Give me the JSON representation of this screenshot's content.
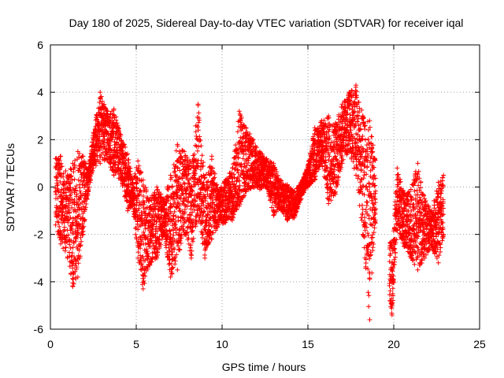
{
  "chart_data": {
    "type": "scatter",
    "title": "Day 180 of 2025, Sidereal Day-to-day VTEC variation (SDTVAR) for receiver iqal",
    "xlabel": "GPS time / hours",
    "ylabel": "SDTVAR / TECUs",
    "xlim": [
      0,
      25
    ],
    "ylim": [
      -6,
      6
    ],
    "xticks": [
      0,
      5,
      10,
      15,
      20,
      25
    ],
    "yticks": [
      -6,
      -4,
      -2,
      0,
      2,
      4,
      6
    ],
    "xtick_labels": [
      "0",
      "5",
      "10",
      "15",
      "20",
      "25"
    ],
    "ytick_labels": [
      "-6",
      "-4",
      "-2",
      "0",
      "2",
      "4",
      "6"
    ],
    "grid": true,
    "marker": "+",
    "marker_color": "#ff0000",
    "series": [
      {
        "name": "SDTVAR",
        "envelope_points": [
          {
            "x": 0.3,
            "lo": -1.6,
            "hi": 1.2
          },
          {
            "x": 0.6,
            "lo": -2.4,
            "hi": 1.3
          },
          {
            "x": 1.0,
            "lo": -3.0,
            "hi": 0.5
          },
          {
            "x": 1.3,
            "lo": -4.2,
            "hi": 1.0
          },
          {
            "x": 1.6,
            "lo": -3.8,
            "hi": 1.5
          },
          {
            "x": 1.9,
            "lo": -2.0,
            "hi": 1.3
          },
          {
            "x": 2.2,
            "lo": -0.2,
            "hi": 0.8
          },
          {
            "x": 2.5,
            "lo": 0.8,
            "hi": 2.3
          },
          {
            "x": 2.9,
            "lo": 1.0,
            "hi": 4.0
          },
          {
            "x": 3.3,
            "lo": 1.2,
            "hi": 3.2
          },
          {
            "x": 3.7,
            "lo": 0.5,
            "hi": 3.3
          },
          {
            "x": 4.1,
            "lo": 0.3,
            "hi": 2.2
          },
          {
            "x": 4.5,
            "lo": -1.0,
            "hi": 1.4
          },
          {
            "x": 4.8,
            "lo": -0.8,
            "hi": 0.2
          },
          {
            "x": 5.1,
            "lo": -3.0,
            "hi": 1.1
          },
          {
            "x": 5.4,
            "lo": -4.3,
            "hi": 0.3
          },
          {
            "x": 5.8,
            "lo": -3.3,
            "hi": -0.5
          },
          {
            "x": 6.2,
            "lo": -3.0,
            "hi": 0.0
          },
          {
            "x": 6.6,
            "lo": -2.0,
            "hi": -0.5
          },
          {
            "x": 7.0,
            "lo": -3.8,
            "hi": 0.5
          },
          {
            "x": 7.4,
            "lo": -3.5,
            "hi": 1.8
          },
          {
            "x": 7.8,
            "lo": -2.0,
            "hi": 1.5
          },
          {
            "x": 8.2,
            "lo": -3.0,
            "hi": 1.0
          },
          {
            "x": 8.6,
            "lo": -1.2,
            "hi": 3.5
          },
          {
            "x": 9.0,
            "lo": -3.0,
            "hi": 0.4
          },
          {
            "x": 9.4,
            "lo": -2.2,
            "hi": 1.3
          },
          {
            "x": 9.8,
            "lo": -1.6,
            "hi": -0.2
          },
          {
            "x": 10.2,
            "lo": -1.5,
            "hi": 0.3
          },
          {
            "x": 10.6,
            "lo": -1.4,
            "hi": 0.8
          },
          {
            "x": 11.0,
            "lo": -0.8,
            "hi": 3.2
          },
          {
            "x": 11.4,
            "lo": -0.2,
            "hi": 2.5
          },
          {
            "x": 11.8,
            "lo": 0.0,
            "hi": 2.0
          },
          {
            "x": 12.2,
            "lo": -0.1,
            "hi": 1.5
          },
          {
            "x": 12.6,
            "lo": 0.0,
            "hi": 1.2
          },
          {
            "x": 13.0,
            "lo": -1.2,
            "hi": 1.0
          },
          {
            "x": 13.4,
            "lo": -0.9,
            "hi": 0.3
          },
          {
            "x": 13.8,
            "lo": -1.4,
            "hi": 0.1
          },
          {
            "x": 14.2,
            "lo": -1.3,
            "hi": -0.2
          },
          {
            "x": 14.6,
            "lo": -0.5,
            "hi": 0.2
          },
          {
            "x": 15.0,
            "lo": 0.0,
            "hi": 0.9
          },
          {
            "x": 15.4,
            "lo": 0.3,
            "hi": 2.5
          },
          {
            "x": 15.8,
            "lo": 1.0,
            "hi": 2.8
          },
          {
            "x": 16.2,
            "lo": -0.7,
            "hi": 3.0
          },
          {
            "x": 16.6,
            "lo": -0.3,
            "hi": 2.7
          },
          {
            "x": 17.0,
            "lo": 1.0,
            "hi": 3.5
          },
          {
            "x": 17.4,
            "lo": 1.5,
            "hi": 4.0
          },
          {
            "x": 17.8,
            "lo": 0.5,
            "hi": 4.3
          },
          {
            "x": 18.2,
            "lo": -2.0,
            "hi": 3.0
          },
          {
            "x": 18.6,
            "lo": -5.6,
            "hi": 2.8
          },
          {
            "x": 18.9,
            "lo": -1.5,
            "hi": 1.2
          },
          {
            "x": 19.9,
            "lo": -5.4,
            "hi": -2.5
          },
          {
            "x": 20.2,
            "lo": -1.8,
            "hi": 0.8
          },
          {
            "x": 20.6,
            "lo": -2.5,
            "hi": -0.3
          },
          {
            "x": 21.0,
            "lo": -3.0,
            "hi": -0.1
          },
          {
            "x": 21.4,
            "lo": -3.5,
            "hi": 1.0
          },
          {
            "x": 21.8,
            "lo": -3.0,
            "hi": -0.5
          },
          {
            "x": 22.2,
            "lo": -2.5,
            "hi": -1.0
          },
          {
            "x": 22.6,
            "lo": -3.2,
            "hi": 0.2
          },
          {
            "x": 22.9,
            "lo": -2.0,
            "hi": 0.5
          }
        ],
        "gaps": [
          [
            18.95,
            19.75
          ]
        ]
      }
    ]
  }
}
